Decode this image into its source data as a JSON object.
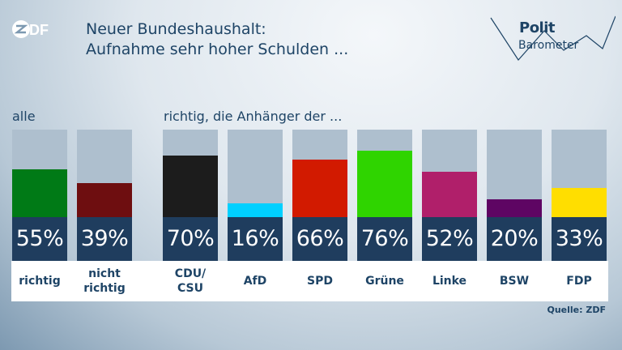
{
  "logo": {
    "zdf": "ZDF",
    "politbarometer_top": "Polit",
    "politbarometer_bottom": "Barometer"
  },
  "headline": {
    "line1": "Neuer Bundeshaushalt:",
    "line2": "Aufnahme sehr hoher Schulden ..."
  },
  "groups": {
    "all_label": "alle",
    "supporters_label": "richtig, die Anhänger der ..."
  },
  "source": "Quelle: ZDF",
  "chart_data": {
    "type": "bar",
    "title": "Neuer Bundeshaushalt: Aufnahme sehr hoher Schulden ...",
    "ylim": [
      0,
      100
    ],
    "unit": "%",
    "categories": [
      "richtig",
      "nicht\nrichtig",
      "CDU/\nCSU",
      "AfD",
      "SPD",
      "Grüne",
      "Linke",
      "BSW",
      "FDP"
    ],
    "values": [
      55,
      39,
      70,
      16,
      66,
      76,
      52,
      20,
      33
    ],
    "value_labels": [
      "55%",
      "39%",
      "70%",
      "16%",
      "66%",
      "76%",
      "52%",
      "20%",
      "33%"
    ],
    "colors": [
      "#007a16",
      "#6e0e10",
      "#1c1c1c",
      "#00d0ff",
      "#d21a00",
      "#2fd400",
      "#b01f6a",
      "#5e0563",
      "#ffde00"
    ],
    "group_labels": [
      "alle",
      "richtig, die Anhänger der ..."
    ]
  }
}
